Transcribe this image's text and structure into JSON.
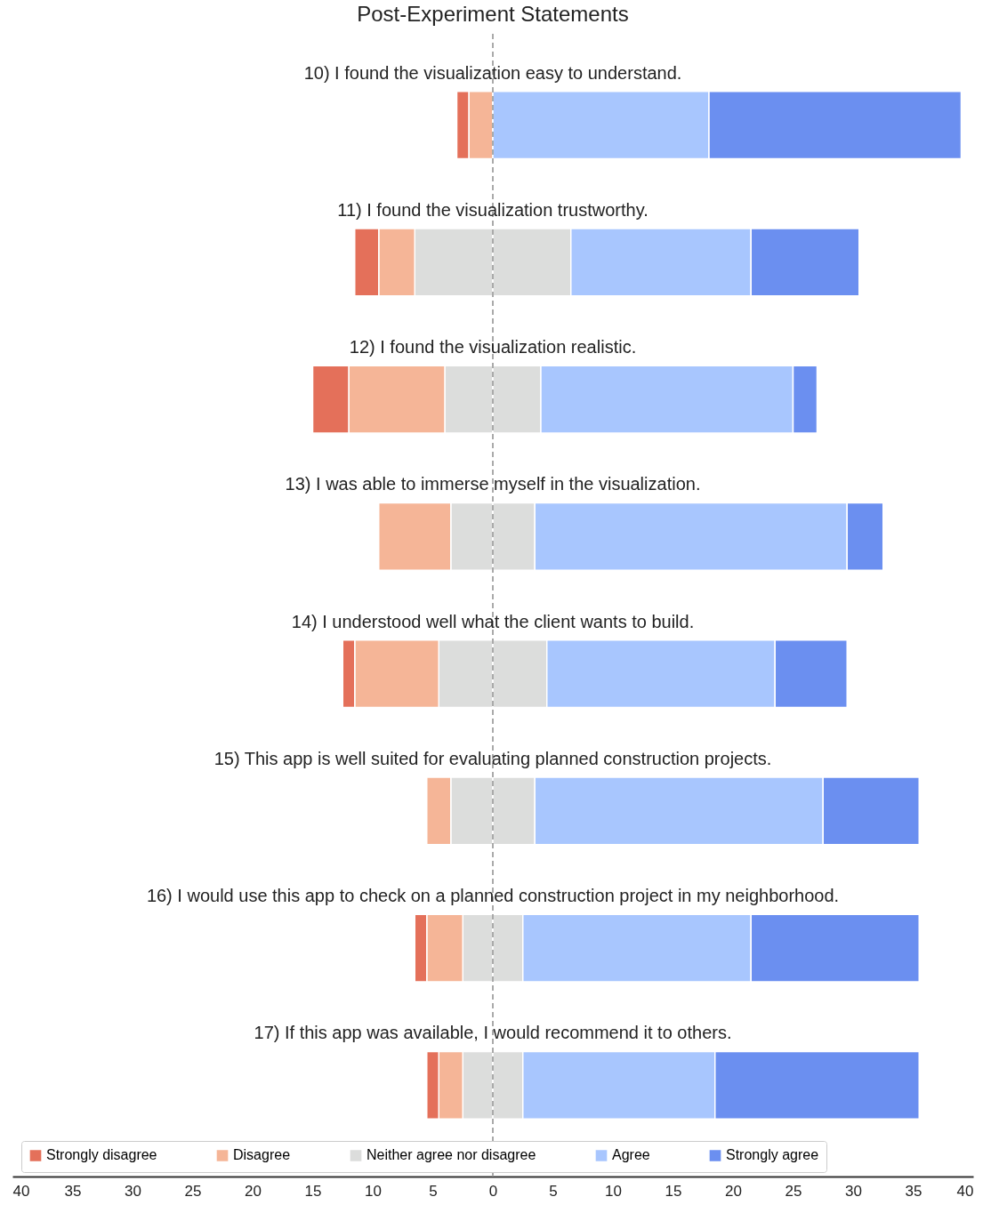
{
  "chart_data": {
    "type": "bar",
    "title": "Post-Experiment Statements",
    "orientation": "horizontal",
    "stacked": true,
    "categories": [
      "10) I found the visualization easy to understand.",
      "11) I found the visualization trustworthy.",
      "12) I found the visualization realistic.",
      "13) I was able to immerse myself in the visualization.",
      "14) I understood well what the client wants to build.",
      "15) This app is well suited for evaluating planned construction projects.",
      "16) I would use this app to check on a planned construction project in my neighborhood.",
      "17) If this app was available, I would recommend it to others."
    ],
    "series": [
      {
        "name": "Neither agree nor disagree",
        "color": "#dcdddc",
        "values": [
          0,
          -6.5,
          -4,
          -3.5,
          -4.5,
          -3.5,
          -2.5,
          -2.5
        ]
      },
      {
        "color": "#dcdddc",
        "values": [
          0,
          6.5,
          4,
          3.5,
          4.5,
          3.5,
          2.5,
          2.5
        ]
      },
      {
        "name": "Disagree",
        "color": "#f5b597",
        "values": [
          -2,
          -3,
          -8,
          -6,
          -7,
          -2,
          -3,
          -2
        ]
      },
      {
        "name": "Agree",
        "color": "#a8c6fe",
        "values": [
          18,
          15,
          21,
          26,
          19,
          24,
          19,
          16
        ]
      },
      {
        "name": "Strongly disagree",
        "color": "#e4705a",
        "values": [
          -1,
          -2,
          -3,
          0,
          -1,
          0,
          -1,
          -1
        ]
      },
      {
        "name": "Strongly agree",
        "color": "#6b8ff0",
        "values": [
          21,
          9,
          2,
          3,
          6,
          8,
          14,
          17
        ]
      }
    ],
    "xlim": [
      -40,
      40
    ],
    "xticks": [
      {
        "value": -40,
        "label": "40"
      },
      {
        "value": -35,
        "label": "35"
      },
      {
        "value": -30,
        "label": "30"
      },
      {
        "value": -25,
        "label": "25"
      },
      {
        "value": -20,
        "label": "20"
      },
      {
        "value": -15,
        "label": "15"
      },
      {
        "value": -10,
        "label": "10"
      },
      {
        "value": -5,
        "label": "5"
      },
      0,
      5,
      10,
      15,
      20,
      25,
      30,
      35,
      40
    ],
    "ref_lines": [
      {
        "axis": "x",
        "value": 0,
        "color": "#aaaaaa",
        "line_style": "dashed"
      }
    ],
    "grid": false,
    "legend": "bottom"
  }
}
